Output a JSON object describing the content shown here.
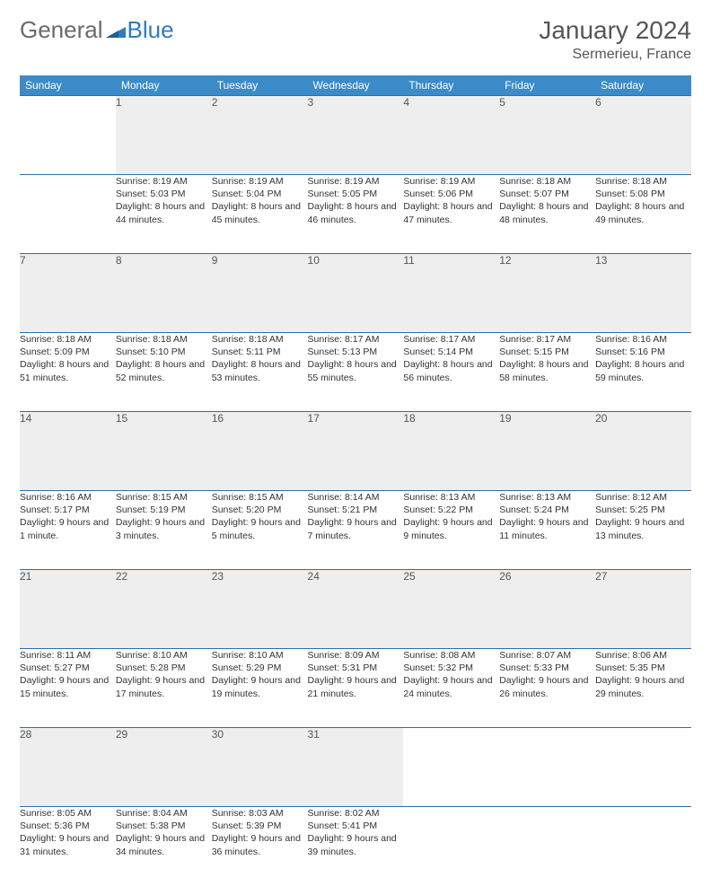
{
  "brand": {
    "part1": "General",
    "part2": "Blue"
  },
  "title": "January 2024",
  "location": "Sermerieu, France",
  "colors": {
    "header_bg": "#3b8bc8",
    "header_text": "#ffffff",
    "daynum_bg": "#eeeeee",
    "rule": "#2f6fa8",
    "body_text": "#333333",
    "title_text": "#555555"
  },
  "weekdays": [
    "Sunday",
    "Monday",
    "Tuesday",
    "Wednesday",
    "Thursday",
    "Friday",
    "Saturday"
  ],
  "weeks": [
    {
      "days": [
        {
          "n": "",
          "sunrise": "",
          "sunset": "",
          "daylight": ""
        },
        {
          "n": "1",
          "sunrise": "Sunrise: 8:19 AM",
          "sunset": "Sunset: 5:03 PM",
          "daylight": "Daylight: 8 hours and 44 minutes."
        },
        {
          "n": "2",
          "sunrise": "Sunrise: 8:19 AM",
          "sunset": "Sunset: 5:04 PM",
          "daylight": "Daylight: 8 hours and 45 minutes."
        },
        {
          "n": "3",
          "sunrise": "Sunrise: 8:19 AM",
          "sunset": "Sunset: 5:05 PM",
          "daylight": "Daylight: 8 hours and 46 minutes."
        },
        {
          "n": "4",
          "sunrise": "Sunrise: 8:19 AM",
          "sunset": "Sunset: 5:06 PM",
          "daylight": "Daylight: 8 hours and 47 minutes."
        },
        {
          "n": "5",
          "sunrise": "Sunrise: 8:18 AM",
          "sunset": "Sunset: 5:07 PM",
          "daylight": "Daylight: 8 hours and 48 minutes."
        },
        {
          "n": "6",
          "sunrise": "Sunrise: 8:18 AM",
          "sunset": "Sunset: 5:08 PM",
          "daylight": "Daylight: 8 hours and 49 minutes."
        }
      ]
    },
    {
      "days": [
        {
          "n": "7",
          "sunrise": "Sunrise: 8:18 AM",
          "sunset": "Sunset: 5:09 PM",
          "daylight": "Daylight: 8 hours and 51 minutes."
        },
        {
          "n": "8",
          "sunrise": "Sunrise: 8:18 AM",
          "sunset": "Sunset: 5:10 PM",
          "daylight": "Daylight: 8 hours and 52 minutes."
        },
        {
          "n": "9",
          "sunrise": "Sunrise: 8:18 AM",
          "sunset": "Sunset: 5:11 PM",
          "daylight": "Daylight: 8 hours and 53 minutes."
        },
        {
          "n": "10",
          "sunrise": "Sunrise: 8:17 AM",
          "sunset": "Sunset: 5:13 PM",
          "daylight": "Daylight: 8 hours and 55 minutes."
        },
        {
          "n": "11",
          "sunrise": "Sunrise: 8:17 AM",
          "sunset": "Sunset: 5:14 PM",
          "daylight": "Daylight: 8 hours and 56 minutes."
        },
        {
          "n": "12",
          "sunrise": "Sunrise: 8:17 AM",
          "sunset": "Sunset: 5:15 PM",
          "daylight": "Daylight: 8 hours and 58 minutes."
        },
        {
          "n": "13",
          "sunrise": "Sunrise: 8:16 AM",
          "sunset": "Sunset: 5:16 PM",
          "daylight": "Daylight: 8 hours and 59 minutes."
        }
      ]
    },
    {
      "days": [
        {
          "n": "14",
          "sunrise": "Sunrise: 8:16 AM",
          "sunset": "Sunset: 5:17 PM",
          "daylight": "Daylight: 9 hours and 1 minute."
        },
        {
          "n": "15",
          "sunrise": "Sunrise: 8:15 AM",
          "sunset": "Sunset: 5:19 PM",
          "daylight": "Daylight: 9 hours and 3 minutes."
        },
        {
          "n": "16",
          "sunrise": "Sunrise: 8:15 AM",
          "sunset": "Sunset: 5:20 PM",
          "daylight": "Daylight: 9 hours and 5 minutes."
        },
        {
          "n": "17",
          "sunrise": "Sunrise: 8:14 AM",
          "sunset": "Sunset: 5:21 PM",
          "daylight": "Daylight: 9 hours and 7 minutes."
        },
        {
          "n": "18",
          "sunrise": "Sunrise: 8:13 AM",
          "sunset": "Sunset: 5:22 PM",
          "daylight": "Daylight: 9 hours and 9 minutes."
        },
        {
          "n": "19",
          "sunrise": "Sunrise: 8:13 AM",
          "sunset": "Sunset: 5:24 PM",
          "daylight": "Daylight: 9 hours and 11 minutes."
        },
        {
          "n": "20",
          "sunrise": "Sunrise: 8:12 AM",
          "sunset": "Sunset: 5:25 PM",
          "daylight": "Daylight: 9 hours and 13 minutes."
        }
      ]
    },
    {
      "days": [
        {
          "n": "21",
          "sunrise": "Sunrise: 8:11 AM",
          "sunset": "Sunset: 5:27 PM",
          "daylight": "Daylight: 9 hours and 15 minutes."
        },
        {
          "n": "22",
          "sunrise": "Sunrise: 8:10 AM",
          "sunset": "Sunset: 5:28 PM",
          "daylight": "Daylight: 9 hours and 17 minutes."
        },
        {
          "n": "23",
          "sunrise": "Sunrise: 8:10 AM",
          "sunset": "Sunset: 5:29 PM",
          "daylight": "Daylight: 9 hours and 19 minutes."
        },
        {
          "n": "24",
          "sunrise": "Sunrise: 8:09 AM",
          "sunset": "Sunset: 5:31 PM",
          "daylight": "Daylight: 9 hours and 21 minutes."
        },
        {
          "n": "25",
          "sunrise": "Sunrise: 8:08 AM",
          "sunset": "Sunset: 5:32 PM",
          "daylight": "Daylight: 9 hours and 24 minutes."
        },
        {
          "n": "26",
          "sunrise": "Sunrise: 8:07 AM",
          "sunset": "Sunset: 5:33 PM",
          "daylight": "Daylight: 9 hours and 26 minutes."
        },
        {
          "n": "27",
          "sunrise": "Sunrise: 8:06 AM",
          "sunset": "Sunset: 5:35 PM",
          "daylight": "Daylight: 9 hours and 29 minutes."
        }
      ]
    },
    {
      "days": [
        {
          "n": "28",
          "sunrise": "Sunrise: 8:05 AM",
          "sunset": "Sunset: 5:36 PM",
          "daylight": "Daylight: 9 hours and 31 minutes."
        },
        {
          "n": "29",
          "sunrise": "Sunrise: 8:04 AM",
          "sunset": "Sunset: 5:38 PM",
          "daylight": "Daylight: 9 hours and 34 minutes."
        },
        {
          "n": "30",
          "sunrise": "Sunrise: 8:03 AM",
          "sunset": "Sunset: 5:39 PM",
          "daylight": "Daylight: 9 hours and 36 minutes."
        },
        {
          "n": "31",
          "sunrise": "Sunrise: 8:02 AM",
          "sunset": "Sunset: 5:41 PM",
          "daylight": "Daylight: 9 hours and 39 minutes."
        },
        {
          "n": "",
          "sunrise": "",
          "sunset": "",
          "daylight": ""
        },
        {
          "n": "",
          "sunrise": "",
          "sunset": "",
          "daylight": ""
        },
        {
          "n": "",
          "sunrise": "",
          "sunset": "",
          "daylight": ""
        }
      ]
    }
  ]
}
